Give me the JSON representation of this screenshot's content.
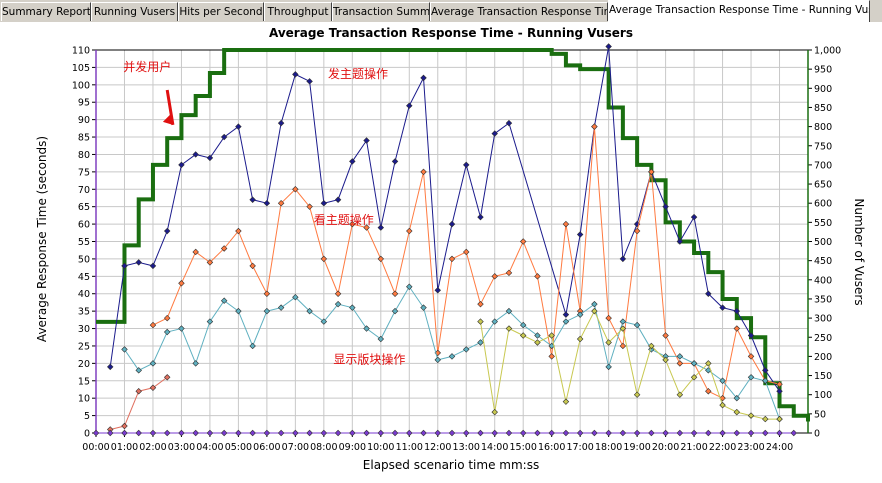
{
  "tabs": [
    {
      "label": "Summary Report",
      "active": false
    },
    {
      "label": "Running Vusers",
      "active": false
    },
    {
      "label": "Hits per Second",
      "active": false
    },
    {
      "label": "Throughput",
      "active": false
    },
    {
      "label": "Transaction Summary",
      "active": false
    },
    {
      "label": "Average Transaction Response Time",
      "active": false
    },
    {
      "label": "Average Transaction Response Time - Running Vusers",
      "active": true
    }
  ],
  "chart_data": {
    "type": "line",
    "title": "Average Transaction Response Time - Running Vusers",
    "xlabel": "Elapsed scenario time mm:ss",
    "ylabel": "Average Response Time (seconds)",
    "y2label": "Number of Vusers",
    "xlim": [
      0,
      25
    ],
    "ylim": [
      0,
      110
    ],
    "y2lim": [
      0,
      1000
    ],
    "grid": true,
    "x_ticks": [
      "00:00",
      "01:00",
      "02:00",
      "03:00",
      "04:00",
      "05:00",
      "06:00",
      "07:00",
      "08:00",
      "09:00",
      "10:00",
      "11:00",
      "12:00",
      "13:00",
      "14:00",
      "15:00",
      "16:00",
      "17:00",
      "18:00",
      "19:00",
      "20:00",
      "21:00",
      "22:00",
      "23:00",
      "24:00"
    ],
    "y_ticks": [
      0,
      5,
      10,
      15,
      20,
      25,
      30,
      35,
      40,
      45,
      50,
      55,
      60,
      65,
      70,
      75,
      80,
      85,
      90,
      95,
      100,
      105,
      110
    ],
    "y2_ticks": [
      "0",
      "50",
      "100",
      "150",
      "200",
      "250",
      "300",
      "350",
      "400",
      "450",
      "500",
      "550",
      "600",
      "650",
      "700",
      "750",
      "800",
      "850",
      "900",
      "950",
      "1,000"
    ],
    "annotations": [
      {
        "text": "并发用户",
        "x": 1.8,
        "y": 104
      },
      {
        "text": "发主题操作",
        "x": 9.2,
        "y": 102
      },
      {
        "text": "看主题操作",
        "x": 8.7,
        "y": 60
      },
      {
        "text": "显示版块操作",
        "x": 9.6,
        "y": 20
      }
    ],
    "series": [
      {
        "color": "#1a6e10",
        "axis": "right",
        "style": "step",
        "x": [
          0,
          0.5,
          1,
          1.5,
          2,
          2.5,
          3,
          3.5,
          4,
          4.5,
          5,
          6,
          7,
          8,
          9,
          10,
          11,
          12,
          13,
          14,
          15,
          16,
          16.5,
          17,
          17.5,
          18,
          18.5,
          19,
          19.5,
          20,
          20.5,
          21,
          21.5,
          22,
          22.5,
          23,
          23.5,
          24,
          24.5,
          25
        ],
        "values": [
          290,
          290,
          490,
          610,
          700,
          770,
          830,
          880,
          940,
          1000,
          1000,
          1000,
          1000,
          1000,
          1000,
          1000,
          1000,
          1000,
          1000,
          1000,
          1000,
          990,
          960,
          950,
          950,
          850,
          770,
          700,
          660,
          550,
          500,
          470,
          420,
          350,
          300,
          250,
          130,
          70,
          45,
          30
        ]
      },
      {
        "color": "#1b1b8c",
        "axis": "left",
        "x": [
          0.5,
          1,
          1.5,
          2,
          2.5,
          3,
          3.5,
          4,
          4.5,
          5,
          5.5,
          6,
          6.5,
          7,
          7.5,
          8,
          8.5,
          9,
          9.5,
          10,
          10.5,
          11,
          11.5,
          12,
          12.5,
          13,
          13.5,
          14,
          14.5,
          16.5,
          17,
          17.5,
          18,
          18.5,
          19,
          19.5,
          20,
          20.5,
          21,
          21.5,
          22,
          22.5,
          23,
          23.5,
          24
        ],
        "values": [
          19,
          48,
          49,
          48,
          58,
          77,
          80,
          79,
          85,
          88,
          67,
          66,
          89,
          103,
          101,
          66,
          67,
          78,
          84,
          59,
          78,
          94,
          102,
          41,
          60,
          77,
          62,
          86,
          89,
          34,
          57,
          88,
          111,
          50,
          60,
          75,
          65,
          55,
          62,
          40,
          36,
          35,
          28,
          18,
          12
        ]
      },
      {
        "color": "#ff7a40",
        "axis": "left",
        "x": [
          2,
          2.5,
          3,
          3.5,
          4,
          4.5,
          5,
          5.5,
          6,
          6.5,
          7,
          7.5,
          8,
          8.5,
          9,
          9.5,
          10,
          10.5,
          11,
          11.5,
          12,
          12.5,
          13,
          13.5,
          14,
          14.5,
          15,
          15.5,
          16,
          16.5,
          17,
          17.5,
          18,
          18.5,
          19,
          19.5,
          20,
          20.5,
          21,
          21.5,
          22,
          22.5,
          23,
          23.5,
          24
        ],
        "values": [
          31,
          33,
          43,
          52,
          49,
          53,
          58,
          48,
          40,
          66,
          70,
          65,
          50,
          40,
          60,
          59,
          50,
          40,
          58,
          75,
          23,
          50,
          52,
          37,
          45,
          46,
          55,
          45,
          22,
          60,
          35,
          88,
          33,
          25,
          58,
          75,
          28,
          20,
          20,
          12,
          10,
          30,
          22,
          15,
          14
        ]
      },
      {
        "color": "#5fb0c0",
        "axis": "left",
        "x": [
          1,
          1.5,
          2,
          2.5,
          3,
          3.5,
          4,
          4.5,
          5,
          5.5,
          6,
          6.5,
          7,
          7.5,
          8,
          8.5,
          9,
          9.5,
          10,
          10.5,
          11,
          11.5,
          12,
          12.5,
          13,
          13.5,
          14,
          14.5,
          15,
          15.5,
          16,
          16.5,
          17,
          17.5,
          18,
          18.5,
          19,
          19.5,
          20,
          20.5,
          21,
          21.5,
          22,
          22.5,
          23,
          23.5,
          24
        ],
        "values": [
          24,
          18,
          20,
          29,
          30,
          20,
          32,
          38,
          35,
          25,
          35,
          36,
          39,
          35,
          32,
          37,
          36,
          30,
          27,
          35,
          42,
          36,
          21,
          22,
          24,
          26,
          32,
          35,
          31,
          28,
          25,
          32,
          34,
          37,
          19,
          32,
          31,
          24,
          22,
          22,
          20,
          18,
          15,
          10,
          16,
          15,
          4
        ]
      },
      {
        "color": "#c8c850",
        "axis": "left",
        "x": [
          13.5,
          14,
          14.5,
          15,
          15.5,
          16,
          16.5,
          17,
          17.5,
          18,
          18.5,
          19,
          19.5,
          20,
          20.5,
          21,
          21.5,
          22,
          22.5,
          23,
          23.5,
          24
        ],
        "values": [
          32,
          6,
          30,
          28,
          26,
          28,
          9,
          27,
          35,
          26,
          30,
          11,
          25,
          21,
          11,
          16,
          20,
          8,
          6,
          5,
          4,
          4
        ]
      },
      {
        "color": "#e07060",
        "axis": "left",
        "x": [
          0.5,
          1,
          1.5,
          2,
          2.5
        ],
        "values": [
          1,
          2,
          12,
          13,
          16
        ]
      },
      {
        "color": "#7a3ad0",
        "axis": "left",
        "x": [
          0,
          0.5,
          1,
          1.5,
          2,
          2.5,
          3,
          3.5,
          4,
          4.5,
          5,
          5.5,
          6,
          6.5,
          7,
          7.5,
          8,
          8.5,
          9,
          9.5,
          10,
          10.5,
          11,
          11.5,
          12,
          12.5,
          13,
          13.5,
          14,
          14.5,
          15,
          15.5,
          16,
          16.5,
          17,
          17.5,
          18,
          18.5,
          19,
          19.5,
          20,
          20.5,
          21,
          21.5,
          22,
          22.5,
          23,
          23.5,
          24,
          24.5
        ],
        "values": [
          0,
          0,
          0,
          0,
          0,
          0,
          0,
          0,
          0,
          0,
          0,
          0,
          0,
          0,
          0,
          0,
          0,
          0,
          0,
          0,
          0,
          0,
          0,
          0,
          0,
          0,
          0,
          0,
          0,
          0,
          0,
          0,
          0,
          0,
          0,
          0,
          0,
          0,
          0,
          0,
          0,
          0,
          0,
          0,
          0,
          0,
          0,
          0,
          0,
          0
        ]
      }
    ]
  }
}
